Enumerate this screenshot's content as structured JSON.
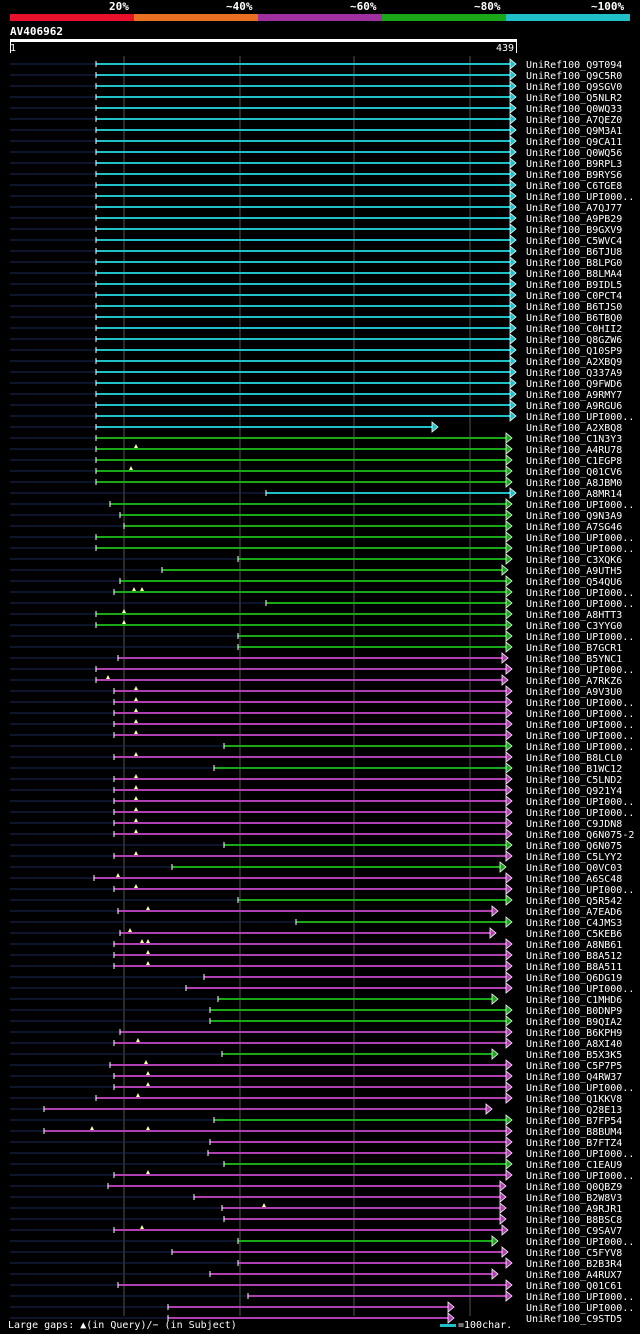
{
  "legend": [
    {
      "label": "20%",
      "color": "#e8102a"
    },
    {
      "label": "~40%",
      "color": "#e87020"
    },
    {
      "label": "~60%",
      "color": "#a030a0"
    },
    {
      "label": "~80%",
      "color": "#18a818"
    },
    {
      "label": "~100%",
      "color": "#20c0c8"
    }
  ],
  "query": {
    "title": "AV406962",
    "start": "1",
    "end": "439"
  },
  "colors": {
    "cyan": "#20c0c8",
    "green": "#18a818",
    "magenta": "#b040b0",
    "faint": "#1a2a5a"
  },
  "footer": {
    "gaps": "Large gaps: ▲(in Query)/− (in Subject)",
    "scale": "=100char."
  },
  "hits": [
    {
      "name": "UniRef100_Q9T094",
      "c": "cyan",
      "s": 96,
      "e": 516,
      "a": 1
    },
    {
      "name": "UniRef100_Q9C5R0",
      "c": "cyan",
      "s": 96,
      "e": 516,
      "a": 1
    },
    {
      "name": "UniRef100_Q9SGV0",
      "c": "cyan",
      "s": 96,
      "e": 516,
      "a": 1
    },
    {
      "name": "UniRef100_Q5NLR2",
      "c": "cyan",
      "s": 96,
      "e": 516,
      "a": 1
    },
    {
      "name": "UniRef100_Q0WQ33",
      "c": "cyan",
      "s": 96,
      "e": 516,
      "a": 1
    },
    {
      "name": "UniRef100_A7QEZ0",
      "c": "cyan",
      "s": 96,
      "e": 516,
      "a": 1
    },
    {
      "name": "UniRef100_Q9M3A1",
      "c": "cyan",
      "s": 96,
      "e": 516,
      "a": 1
    },
    {
      "name": "UniRef100_Q9CA11",
      "c": "cyan",
      "s": 96,
      "e": 516,
      "a": 1
    },
    {
      "name": "UniRef100_Q0WQ56",
      "c": "cyan",
      "s": 96,
      "e": 516,
      "a": 1
    },
    {
      "name": "UniRef100_B9RPL3",
      "c": "cyan",
      "s": 96,
      "e": 516,
      "a": 1
    },
    {
      "name": "UniRef100_B9RYS6",
      "c": "cyan",
      "s": 96,
      "e": 516,
      "a": 1
    },
    {
      "name": "UniRef100_C6TGE8",
      "c": "cyan",
      "s": 96,
      "e": 516,
      "a": 1
    },
    {
      "name": "UniRef100_UPI000..",
      "c": "cyan",
      "s": 96,
      "e": 516,
      "a": 1
    },
    {
      "name": "UniRef100_A7QJ77",
      "c": "cyan",
      "s": 96,
      "e": 516,
      "a": 1
    },
    {
      "name": "UniRef100_A9PB29",
      "c": "cyan",
      "s": 96,
      "e": 516,
      "a": 1
    },
    {
      "name": "UniRef100_B9GXV9",
      "c": "cyan",
      "s": 96,
      "e": 516,
      "a": 1
    },
    {
      "name": "UniRef100_C5WVC4",
      "c": "cyan",
      "s": 96,
      "e": 516,
      "a": 1
    },
    {
      "name": "UniRef100_B6TJU8",
      "c": "cyan",
      "s": 96,
      "e": 516,
      "a": 1
    },
    {
      "name": "UniRef100_B8LPG0",
      "c": "cyan",
      "s": 96,
      "e": 516,
      "a": 1
    },
    {
      "name": "UniRef100_B8LMA4",
      "c": "cyan",
      "s": 96,
      "e": 516,
      "a": 1
    },
    {
      "name": "UniRef100_B9IDL5",
      "c": "cyan",
      "s": 96,
      "e": 516,
      "a": 1
    },
    {
      "name": "UniRef100_C0PCT4",
      "c": "cyan",
      "s": 96,
      "e": 516,
      "a": 1
    },
    {
      "name": "UniRef100_B6TJS0",
      "c": "cyan",
      "s": 96,
      "e": 516,
      "a": 1
    },
    {
      "name": "UniRef100_B6TBQ0",
      "c": "cyan",
      "s": 96,
      "e": 516,
      "a": 1
    },
    {
      "name": "UniRef100_C0HII2",
      "c": "cyan",
      "s": 96,
      "e": 516,
      "a": 1
    },
    {
      "name": "UniRef100_Q8GZW6",
      "c": "cyan",
      "s": 96,
      "e": 516,
      "a": 1
    },
    {
      "name": "UniRef100_Q10SP9",
      "c": "cyan",
      "s": 96,
      "e": 516,
      "a": 1
    },
    {
      "name": "UniRef100_A2XBQ9",
      "c": "cyan",
      "s": 96,
      "e": 516,
      "a": 1
    },
    {
      "name": "UniRef100_Q337A9",
      "c": "cyan",
      "s": 96,
      "e": 516,
      "a": 1
    },
    {
      "name": "UniRef100_Q9FWD6",
      "c": "cyan",
      "s": 96,
      "e": 516,
      "a": 1
    },
    {
      "name": "UniRef100_A9RMY7",
      "c": "cyan",
      "s": 96,
      "e": 516,
      "a": 1
    },
    {
      "name": "UniRef100_A9RGU6",
      "c": "cyan",
      "s": 96,
      "e": 516,
      "a": 1
    },
    {
      "name": "UniRef100_UPI000..",
      "c": "cyan",
      "s": 96,
      "e": 516,
      "a": 1
    },
    {
      "name": "UniRef100_A2XBQ8",
      "c": "cyan",
      "s": 96,
      "e": 438,
      "a": 1
    },
    {
      "name": "UniRef100_C1N3Y3",
      "c": "green",
      "s": 96,
      "e": 512,
      "a": 0
    },
    {
      "name": "UniRef100_A4RU78",
      "c": "green",
      "s": 96,
      "e": 512,
      "a": 0,
      "m": [
        136
      ]
    },
    {
      "name": "UniRef100_C1EGP8",
      "c": "green",
      "s": 96,
      "e": 512,
      "a": 0
    },
    {
      "name": "UniRef100_Q01CV6",
      "c": "green",
      "s": 96,
      "e": 512,
      "a": 0,
      "m": [
        131
      ]
    },
    {
      "name": "UniRef100_A8JBM0",
      "c": "green",
      "s": 96,
      "e": 512,
      "a": 0
    },
    {
      "name": "UniRef100_A8MR14",
      "c": "cyan",
      "s": 266,
      "e": 516,
      "a": 1
    },
    {
      "name": "UniRef100_UPI000..",
      "c": "green",
      "s": 110,
      "e": 512,
      "a": 0
    },
    {
      "name": "UniRef100_Q9N3A9",
      "c": "green",
      "s": 120,
      "e": 512,
      "a": 0
    },
    {
      "name": "UniRef100_A7SG46",
      "c": "green",
      "s": 124,
      "e": 512,
      "a": 0
    },
    {
      "name": "UniRef100_UPI000..",
      "c": "green",
      "s": 96,
      "e": 512,
      "a": 0
    },
    {
      "name": "UniRef100_UPI000..",
      "c": "green",
      "s": 96,
      "e": 512,
      "a": 0
    },
    {
      "name": "UniRef100_C3XQK6",
      "c": "green",
      "s": 238,
      "e": 512,
      "a": 0
    },
    {
      "name": "UniRef100_A9UTH5",
      "c": "green",
      "s": 162,
      "e": 508,
      "a": 0
    },
    {
      "name": "UniRef100_Q54QU6",
      "c": "green",
      "s": 120,
      "e": 512,
      "a": 0
    },
    {
      "name": "UniRef100_UPI000..",
      "c": "green",
      "s": 114,
      "e": 512,
      "a": 0,
      "m": [
        134,
        142
      ]
    },
    {
      "name": "UniRef100_UPI000..",
      "c": "green",
      "s": 266,
      "e": 512,
      "a": 0
    },
    {
      "name": "UniRef100_A8HTT3",
      "c": "green",
      "s": 96,
      "e": 512,
      "a": 0,
      "m": [
        124
      ]
    },
    {
      "name": "UniRef100_C3YYG0",
      "c": "green",
      "s": 96,
      "e": 512,
      "a": 0,
      "m": [
        124
      ]
    },
    {
      "name": "UniRef100_UPI000..",
      "c": "green",
      "s": 238,
      "e": 512,
      "a": 0
    },
    {
      "name": "UniRef100_B7GCR1",
      "c": "green",
      "s": 238,
      "e": 512,
      "a": 0
    },
    {
      "name": "UniRef100_B5YNC1",
      "c": "magenta",
      "s": 118,
      "e": 508,
      "a": 0
    },
    {
      "name": "UniRef100_UPI000..",
      "c": "magenta",
      "s": 96,
      "e": 512,
      "a": 0
    },
    {
      "name": "UniRef100_A7RKZ6",
      "c": "magenta",
      "s": 96,
      "e": 508,
      "a": 0,
      "m": [
        108
      ]
    },
    {
      "name": "UniRef100_A9V3U0",
      "c": "magenta",
      "s": 114,
      "e": 512,
      "a": 0,
      "m": [
        136
      ]
    },
    {
      "name": "UniRef100_UPI000..",
      "c": "magenta",
      "s": 114,
      "e": 512,
      "a": 0,
      "m": [
        136
      ]
    },
    {
      "name": "UniRef100_UPI000..",
      "c": "magenta",
      "s": 114,
      "e": 512,
      "a": 0,
      "m": [
        136
      ]
    },
    {
      "name": "UniRef100_UPI000..",
      "c": "magenta",
      "s": 114,
      "e": 512,
      "a": 0,
      "m": [
        136
      ]
    },
    {
      "name": "UniRef100_UPI000..",
      "c": "magenta",
      "s": 114,
      "e": 512,
      "a": 0,
      "m": [
        136
      ]
    },
    {
      "name": "UniRef100_UPI000..",
      "c": "green",
      "s": 224,
      "e": 512,
      "a": 0
    },
    {
      "name": "UniRef100_B8LCL0",
      "c": "magenta",
      "s": 114,
      "e": 512,
      "a": 0,
      "m": [
        136
      ]
    },
    {
      "name": "UniRef100_B1WC12",
      "c": "green",
      "s": 214,
      "e": 512,
      "a": 0
    },
    {
      "name": "UniRef100_C5LND2",
      "c": "magenta",
      "s": 114,
      "e": 512,
      "a": 0,
      "m": [
        136
      ]
    },
    {
      "name": "UniRef100_Q921Y4",
      "c": "magenta",
      "s": 114,
      "e": 512,
      "a": 0,
      "m": [
        136
      ]
    },
    {
      "name": "UniRef100_UPI000..",
      "c": "magenta",
      "s": 114,
      "e": 512,
      "a": 0,
      "m": [
        136
      ]
    },
    {
      "name": "UniRef100_UPI000..",
      "c": "magenta",
      "s": 114,
      "e": 512,
      "a": 0,
      "m": [
        136
      ]
    },
    {
      "name": "UniRef100_C9JDN8",
      "c": "magenta",
      "s": 114,
      "e": 512,
      "a": 0,
      "m": [
        136
      ]
    },
    {
      "name": "UniRef100_Q6N075-2",
      "c": "magenta",
      "s": 114,
      "e": 512,
      "a": 0,
      "m": [
        136
      ]
    },
    {
      "name": "UniRef100_Q6N075",
      "c": "green",
      "s": 224,
      "e": 512,
      "a": 0
    },
    {
      "name": "UniRef100_C5LYY2",
      "c": "magenta",
      "s": 114,
      "e": 512,
      "a": 0,
      "m": [
        136
      ]
    },
    {
      "name": "UniRef100_Q0VC03",
      "c": "green",
      "s": 172,
      "e": 506,
      "a": 0
    },
    {
      "name": "UniRef100_A6SC48",
      "c": "magenta",
      "s": 94,
      "e": 512,
      "a": 0,
      "m": [
        118
      ]
    },
    {
      "name": "UniRef100_UPI000..",
      "c": "magenta",
      "s": 114,
      "e": 512,
      "a": 0,
      "m": [
        136
      ]
    },
    {
      "name": "UniRef100_Q5R542",
      "c": "green",
      "s": 238,
      "e": 512,
      "a": 0
    },
    {
      "name": "UniRef100_A7EAD6",
      "c": "magenta",
      "s": 118,
      "e": 498,
      "a": 0,
      "m": [
        148
      ]
    },
    {
      "name": "UniRef100_C4JMS3",
      "c": "green",
      "s": 296,
      "e": 512,
      "a": 0
    },
    {
      "name": "UniRef100_C5KEB6",
      "c": "magenta",
      "s": 120,
      "e": 496,
      "a": 0,
      "m": [
        130
      ]
    },
    {
      "name": "UniRef100_A8NB61",
      "c": "magenta",
      "s": 114,
      "e": 512,
      "a": 0,
      "m": [
        142,
        148
      ]
    },
    {
      "name": "UniRef100_B8A512",
      "c": "magenta",
      "s": 114,
      "e": 512,
      "a": 0,
      "m": [
        148
      ]
    },
    {
      "name": "UniRef100_B8A511",
      "c": "magenta",
      "s": 114,
      "e": 512,
      "a": 0,
      "m": [
        148
      ]
    },
    {
      "name": "UniRef100_Q6DG19",
      "c": "magenta",
      "s": 204,
      "e": 512,
      "a": 0
    },
    {
      "name": "UniRef100_UPI000..",
      "c": "magenta",
      "s": 186,
      "e": 512,
      "a": 0
    },
    {
      "name": "UniRef100_C1MHD6",
      "c": "green",
      "s": 218,
      "e": 498,
      "a": 0
    },
    {
      "name": "UniRef100_B0DNP9",
      "c": "green",
      "s": 210,
      "e": 512,
      "a": 0
    },
    {
      "name": "UniRef100_B9QIA2",
      "c": "green",
      "s": 210,
      "e": 512,
      "a": 0
    },
    {
      "name": "UniRef100_B6KPH9",
      "c": "magenta",
      "s": 120,
      "e": 512,
      "a": 0
    },
    {
      "name": "UniRef100_A8XI40",
      "c": "magenta",
      "s": 114,
      "e": 512,
      "a": 0,
      "m": [
        138
      ]
    },
    {
      "name": "UniRef100_B5X3K5",
      "c": "green",
      "s": 222,
      "e": 498,
      "a": 0
    },
    {
      "name": "UniRef100_C5P7P5",
      "c": "magenta",
      "s": 110,
      "e": 512,
      "a": 0,
      "m": [
        146
      ]
    },
    {
      "name": "UniRef100_Q4RW37",
      "c": "magenta",
      "s": 114,
      "e": 512,
      "a": 0,
      "m": [
        148
      ]
    },
    {
      "name": "UniRef100_UPI000..",
      "c": "magenta",
      "s": 114,
      "e": 512,
      "a": 0,
      "m": [
        148
      ]
    },
    {
      "name": "UniRef100_Q1KKV8",
      "c": "magenta",
      "s": 96,
      "e": 512,
      "a": 0,
      "m": [
        138
      ]
    },
    {
      "name": "UniRef100_Q28E13",
      "c": "magenta",
      "s": 44,
      "e": 492,
      "a": 0
    },
    {
      "name": "UniRef100_B7FP54",
      "c": "green",
      "s": 214,
      "e": 512,
      "a": 0
    },
    {
      "name": "UniRef100_B8BUM4",
      "c": "magenta",
      "s": 44,
      "e": 512,
      "a": 0,
      "m": [
        92,
        148
      ]
    },
    {
      "name": "UniRef100_B7FTZ4",
      "c": "magenta",
      "s": 210,
      "e": 512,
      "a": 0
    },
    {
      "name": "UniRef100_UPI000..",
      "c": "magenta",
      "s": 208,
      "e": 512,
      "a": 0
    },
    {
      "name": "UniRef100_C1EAU9",
      "c": "green",
      "s": 224,
      "e": 512,
      "a": 0
    },
    {
      "name": "UniRef100_UPI000..",
      "c": "magenta",
      "s": 114,
      "e": 512,
      "a": 0,
      "m": [
        148
      ]
    },
    {
      "name": "UniRef100_Q0QBZ9",
      "c": "magenta",
      "s": 108,
      "e": 506,
      "a": 0
    },
    {
      "name": "UniRef100_B2W8V3",
      "c": "magenta",
      "s": 194,
      "e": 506,
      "a": 0
    },
    {
      "name": "UniRef100_A9RJR1",
      "c": "magenta",
      "s": 222,
      "e": 506,
      "a": 0,
      "m": [
        264
      ]
    },
    {
      "name": "UniRef100_B8BSC8",
      "c": "magenta",
      "s": 224,
      "e": 506,
      "a": 0
    },
    {
      "name": "UniRef100_C9SAV7",
      "c": "magenta",
      "s": 114,
      "e": 508,
      "a": 0,
      "m": [
        142
      ]
    },
    {
      "name": "UniRef100_UPI000..",
      "c": "green",
      "s": 238,
      "e": 498,
      "a": 0
    },
    {
      "name": "UniRef100_C5FYV8",
      "c": "magenta",
      "s": 172,
      "e": 508,
      "a": 0
    },
    {
      "name": "UniRef100_B2B3R4",
      "c": "magenta",
      "s": 238,
      "e": 512,
      "a": 0
    },
    {
      "name": "UniRef100_A4RUX7",
      "c": "magenta",
      "s": 210,
      "e": 498,
      "a": 0
    },
    {
      "name": "UniRef100_Q01C61",
      "c": "magenta",
      "s": 118,
      "e": 512,
      "a": 0
    },
    {
      "name": "UniRef100_UPI000..",
      "c": "magenta",
      "s": 248,
      "e": 512,
      "a": 0
    },
    {
      "name": "UniRef100_UPI000..",
      "c": "magenta",
      "s": 168,
      "e": 454,
      "a": 0
    },
    {
      "name": "UniRef100_C9STD5",
      "c": "magenta",
      "s": 168,
      "e": 454,
      "a": 0,
      "skip": 1
    }
  ]
}
